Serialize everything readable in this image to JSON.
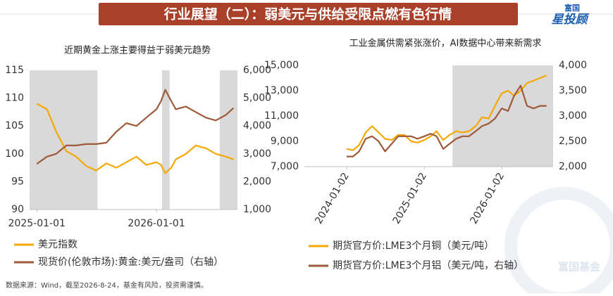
{
  "header": {
    "title": "行业展望（二）：弱美元与供给受限点燃有色行情"
  },
  "logo": {
    "brand": "富国",
    "product": "星投顾"
  },
  "watermark": "富国基金",
  "footnote": "数据来源：Wind，截至2026-8-24，基金有风险，投资需谨慎。",
  "chart_data": [
    {
      "type": "line",
      "title": "近期黄金上涨主要得益于弱美元趋势",
      "x": [
        "2025-01-01",
        "2025-02-01",
        "2025-03-01",
        "2025-04-01",
        "2025-05-01",
        "2025-06-01",
        "2025-07-01",
        "2025-08-01",
        "2025-09-01",
        "2025-10-01",
        "2025-11-01",
        "2025-12-01",
        "2026-01-01",
        "2026-01-15",
        "2026-01-28",
        "2026-02-15",
        "2026-03-01",
        "2026-04-01",
        "2026-05-01",
        "2026-06-01",
        "2026-07-01",
        "2026-08-01",
        "2026-08-24"
      ],
      "xlim": [
        "2024-12-10",
        "2026-09-05"
      ],
      "xticks": [
        "2025-01-01",
        "2026-01-01"
      ],
      "ylim": [
        90,
        115
      ],
      "yticks": [
        90,
        95,
        100,
        105,
        110,
        115
      ],
      "y2lim": [
        1000,
        6000
      ],
      "y2ticks": [
        {
          "value": 1000,
          "label": "1,000"
        },
        {
          "value": 2000,
          "label": "2,000"
        },
        {
          "value": 3000,
          "label": "3,000"
        },
        {
          "value": 4000,
          "label": "4,000"
        },
        {
          "value": 5000,
          "label": "5,000"
        },
        {
          "value": 6000,
          "label": "6,000"
        }
      ],
      "shaded_ranges": [
        [
          "2024-12-10",
          "2025-07-05"
        ],
        [
          "2026-01-18",
          "2026-02-10"
        ],
        [
          "2026-07-13",
          "2026-09-05"
        ]
      ],
      "series": [
        {
          "name": "美元指数",
          "color": "#f5a800",
          "values": [
            109,
            108,
            104,
            100.5,
            99.5,
            97.8,
            97,
            98.3,
            97.5,
            98.5,
            99.5,
            98,
            98.5,
            98,
            96.5,
            97.5,
            99,
            100,
            101.5,
            101,
            100,
            99.5,
            99
          ]
        },
        {
          "name": "现货价(伦敦市场):黄金:美元/盎司（右轴）",
          "color": "#9e5a3a",
          "axis": "y2",
          "values": [
            2640,
            2900,
            3000,
            3300,
            3300,
            3350,
            3350,
            3400,
            3800,
            4100,
            4000,
            4300,
            4600,
            4900,
            5300,
            4900,
            4600,
            4700,
            4500,
            4300,
            4200,
            4400,
            4650
          ]
        }
      ]
    },
    {
      "type": "line",
      "title": "工业金属供需紧张涨价，AI数据中心带来新需求",
      "x": [
        "2024-01-02",
        "2024-02-01",
        "2024-03-01",
        "2024-04-01",
        "2024-05-01",
        "2024-06-01",
        "2024-07-01",
        "2024-08-01",
        "2024-09-01",
        "2024-10-01",
        "2024-11-01",
        "2024-12-01",
        "2025-01-02",
        "2025-02-01",
        "2025-03-01",
        "2025-04-01",
        "2025-05-01",
        "2025-06-01",
        "2025-07-01",
        "2025-08-01",
        "2025-09-01",
        "2025-10-01",
        "2025-11-01",
        "2025-12-01",
        "2026-01-02",
        "2026-02-01",
        "2026-03-01",
        "2026-04-01",
        "2026-05-01",
        "2026-06-01",
        "2026-07-01",
        "2026-08-01"
      ],
      "xlim": [
        "2023-06-17",
        "2026-09-01"
      ],
      "xticks": [
        "2024-01-02",
        "2025-01-02",
        "2026-01-02"
      ],
      "ylim": [
        7000,
        15000
      ],
      "yticks": [
        {
          "value": 7000,
          "label": "7,000"
        },
        {
          "value": 9000,
          "label": "9,000"
        },
        {
          "value": 11000,
          "label": "11,000"
        },
        {
          "value": 13000,
          "label": "13,000"
        },
        {
          "value": 15000,
          "label": "15,000"
        }
      ],
      "y2lim": [
        2000,
        4000
      ],
      "y2ticks": [
        {
          "value": 2000,
          "label": "2,000"
        },
        {
          "value": 2500,
          "label": "2,500"
        },
        {
          "value": 3000,
          "label": "3,000"
        },
        {
          "value": 3500,
          "label": "3,500"
        },
        {
          "value": 4000,
          "label": "4,000"
        }
      ],
      "shaded_ranges": [
        [
          "2025-05-15",
          "2026-09-01"
        ]
      ],
      "series": [
        {
          "name": "期货官方价:LME3个月铜（美元/吨）",
          "color": "#f5a800",
          "values": [
            8400,
            8300,
            8700,
            9700,
            10200,
            9700,
            9200,
            9100,
            9500,
            9500,
            9000,
            8900,
            9100,
            9400,
            9800,
            9100,
            9500,
            9800,
            9700,
            9800,
            10200,
            10900,
            10800,
            11800,
            12800,
            13000,
            12600,
            13000,
            13600,
            13800,
            14000,
            14200
          ]
        },
        {
          "name": "期货官方价:LME3个月铝（美元/吨，右轴）",
          "color": "#9e5a3a",
          "axis": "y2",
          "values": [
            2200,
            2200,
            2300,
            2550,
            2600,
            2500,
            2300,
            2450,
            2600,
            2600,
            2600,
            2550,
            2600,
            2650,
            2600,
            2350,
            2450,
            2550,
            2600,
            2600,
            2700,
            2800,
            2850,
            2950,
            3150,
            3100,
            3400,
            3600,
            3200,
            3150,
            3200,
            3200
          ]
        }
      ]
    }
  ]
}
